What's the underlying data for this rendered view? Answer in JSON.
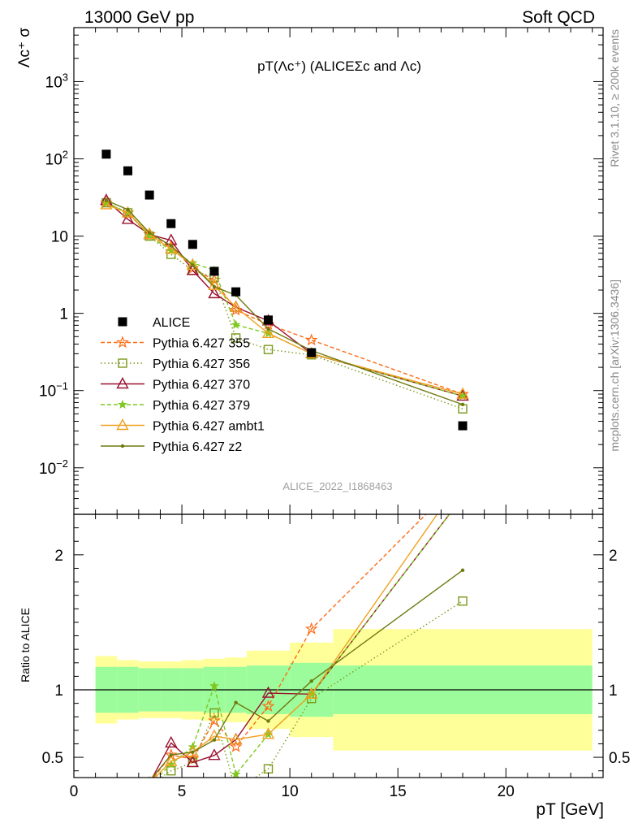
{
  "header": {
    "left": "13000 GeV pp",
    "right": "Soft QCD"
  },
  "side_labels": {
    "rivet": "Rivet 3.1.10, ≥ 200k events",
    "mcplots": "mcplots.cern.ch [arXiv:1306.3436]"
  },
  "chart_data": {
    "type": "scatter",
    "title": "pT(Λc⁺) (ALICEΣc and Λc)",
    "watermark": "ALICE_2022_I1868463",
    "ylabel_main": "Λc⁺ σ",
    "ylabel_ratio": "Ratio to ALICE",
    "xlabel": "pT [GeV]",
    "xlim": [
      0,
      24.5
    ],
    "ylim_main": [
      0.0025,
      5000
    ],
    "yscale_main": "log",
    "ylim_ratio": [
      0.35,
      2.3
    ],
    "xticks": [
      0,
      5,
      10,
      15,
      20
    ],
    "yticks_main": [
      {
        "v": 0.01,
        "base": "10",
        "exp": "−2"
      },
      {
        "v": 0.1,
        "base": "10",
        "exp": "−1"
      },
      {
        "v": 1,
        "base": "1",
        "exp": ""
      },
      {
        "v": 10,
        "base": "10",
        "exp": ""
      },
      {
        "v": 100,
        "base": "10",
        "exp": "2"
      },
      {
        "v": 1000,
        "base": "10",
        "exp": "3"
      }
    ],
    "yticks_ratio": [
      0.5,
      1,
      2
    ],
    "legend_position": "middle-left",
    "bins": [
      {
        "lo": 1,
        "hi": 2,
        "x": 1.5
      },
      {
        "lo": 2,
        "hi": 3,
        "x": 2.5
      },
      {
        "lo": 3,
        "hi": 4,
        "x": 3.5
      },
      {
        "lo": 4,
        "hi": 5,
        "x": 4.5
      },
      {
        "lo": 5,
        "hi": 6,
        "x": 5.5
      },
      {
        "lo": 6,
        "hi": 7,
        "x": 6.5
      },
      {
        "lo": 7,
        "hi": 8,
        "x": 7.5
      },
      {
        "lo": 8,
        "hi": 10,
        "x": 9
      },
      {
        "lo": 10,
        "hi": 12,
        "x": 11
      },
      {
        "lo": 12,
        "hi": 24,
        "x": 18
      }
    ],
    "data": {
      "name": "ALICE",
      "values": [
        115,
        70,
        34,
        14.5,
        7.8,
        3.5,
        1.9,
        0.82,
        0.31,
        0.035
      ],
      "band_inner": [
        0.17,
        0.17,
        0.16,
        0.16,
        0.16,
        0.17,
        0.17,
        0.18,
        0.2,
        0.18
      ],
      "band_outer": [
        0.25,
        0.22,
        0.21,
        0.21,
        0.22,
        0.23,
        0.24,
        0.29,
        0.35,
        0.45
      ]
    },
    "series": [
      {
        "name": "Pythia 6.427 355",
        "color": "#ff6a12",
        "dash": "5,3",
        "marker": "star",
        "values": [
          27,
          20,
          10.5,
          7.5,
          3.8,
          2.7,
          1.1,
          0.72,
          0.45,
          0.09
        ]
      },
      {
        "name": "Pythia 6.427 356",
        "color": "#7a9a1a",
        "dash": "1.5,3",
        "marker": "square",
        "values": [
          27,
          20,
          10,
          5.8,
          3.6,
          2.9,
          0.48,
          0.34,
          0.29,
          0.058
        ]
      },
      {
        "name": "Pythia 6.427 370",
        "color": "#9a1030",
        "dash": "",
        "marker": "triangle",
        "values": [
          29,
          16.5,
          10.5,
          8.8,
          3.6,
          1.8,
          1.2,
          0.8,
          0.3,
          0.085
        ]
      },
      {
        "name": "Pythia 6.427 379",
        "color": "#7ec820",
        "dash": "5,3",
        "marker": "smallstar",
        "values": [
          27,
          20,
          10,
          6.5,
          4.5,
          3.6,
          0.71,
          0.55,
          0.3,
          0.085
        ]
      },
      {
        "name": "Pythia 6.427 ambt1",
        "color": "#f0a020",
        "dash": "",
        "marker": "triangle",
        "values": [
          25.5,
          20,
          10.5,
          6.8,
          4.2,
          2.3,
          1.2,
          0.55,
          0.3,
          0.09
        ]
      },
      {
        "name": "Pythia 6.427 z2",
        "color": "#6f7a10",
        "dash": "",
        "marker": "dot",
        "values": [
          29,
          22,
          11,
          7.5,
          4.2,
          2.2,
          1.72,
          0.63,
          0.33,
          0.066
        ]
      }
    ]
  }
}
